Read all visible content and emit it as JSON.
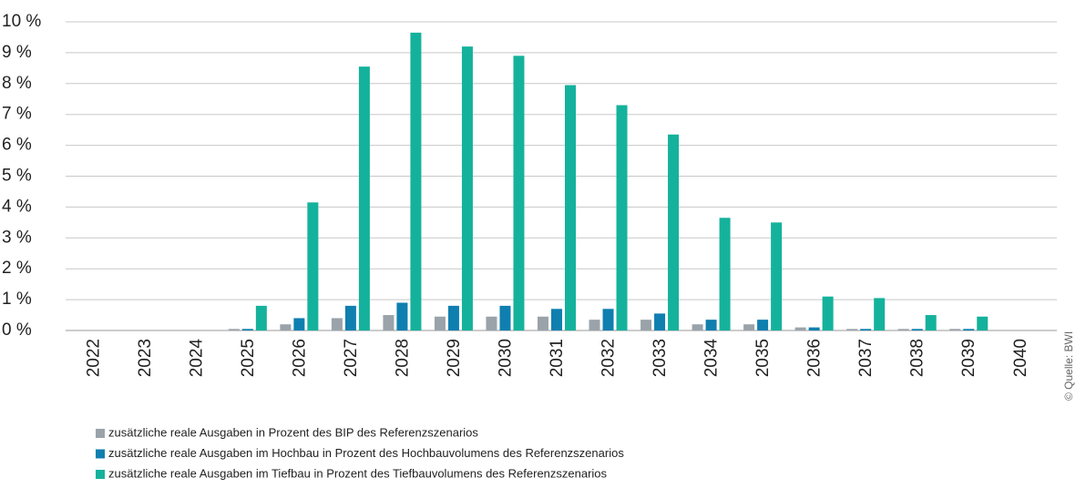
{
  "chart_data": {
    "type": "bar",
    "categories": [
      "2022",
      "2023",
      "2024",
      "2025",
      "2026",
      "2027",
      "2028",
      "2029",
      "2030",
      "2031",
      "2032",
      "2033",
      "2034",
      "2035",
      "2036",
      "2037",
      "2038",
      "2039",
      "2040"
    ],
    "series": [
      {
        "name": "zusätzliche reale Ausgaben in Prozent des BIP des Referenzszenarios",
        "color": "#9aa3aa",
        "values": [
          0,
          0,
          0,
          0.05,
          0.2,
          0.4,
          0.5,
          0.45,
          0.45,
          0.45,
          0.35,
          0.35,
          0.2,
          0.2,
          0.1,
          0.05,
          0.05,
          0.05,
          0
        ]
      },
      {
        "name": "zusätzliche reale Ausgaben im Hochbau in Prozent des Hochbauvolumens des Referenzszenarios",
        "color": "#0f7fb0",
        "values": [
          0,
          0,
          0,
          0.05,
          0.4,
          0.8,
          0.9,
          0.8,
          0.8,
          0.7,
          0.7,
          0.55,
          0.35,
          0.35,
          0.1,
          0.05,
          0.05,
          0.05,
          0
        ]
      },
      {
        "name": "zusätzliche reale Ausgaben im Tiefbau in Prozent des Tiefbauvolumens des Referenzszenarios",
        "color": "#14b29c",
        "values": [
          0,
          0,
          0,
          0.8,
          4.15,
          8.55,
          9.65,
          9.2,
          8.9,
          7.95,
          7.3,
          6.35,
          3.65,
          3.5,
          1.1,
          1.05,
          0.5,
          0.45,
          0
        ]
      }
    ],
    "ylim": [
      0,
      10
    ],
    "yticks": [
      {
        "value": 0,
        "label": "0 %"
      },
      {
        "value": 1,
        "label": "1 %"
      },
      {
        "value": 2,
        "label": "2 %"
      },
      {
        "value": 3,
        "label": "3 %"
      },
      {
        "value": 4,
        "label": "4 %"
      },
      {
        "value": 5,
        "label": "5 %"
      },
      {
        "value": 6,
        "label": "6 %"
      },
      {
        "value": 7,
        "label": "7 %"
      },
      {
        "value": 8,
        "label": "8 %"
      },
      {
        "value": 9,
        "label": "9 %"
      },
      {
        "value": 10,
        "label": "10 %"
      }
    ],
    "grid": true,
    "source": "© Quelle: BWI"
  }
}
